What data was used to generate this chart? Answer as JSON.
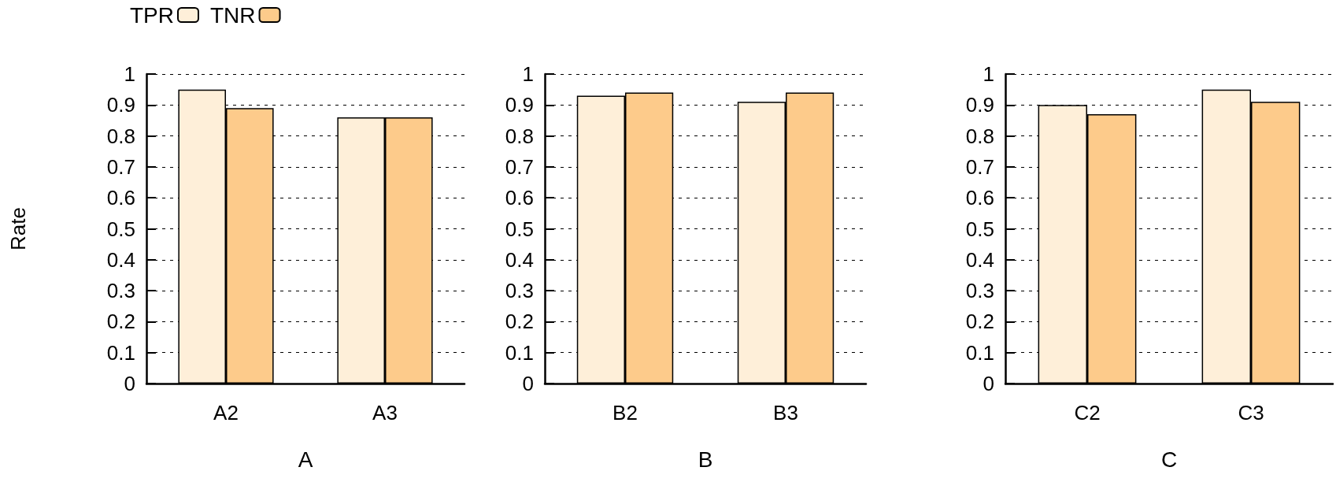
{
  "chart_data": [
    {
      "type": "bar",
      "xlabel": "A",
      "ylabel": "Rate",
      "categories": [
        "A2",
        "A3"
      ],
      "series": [
        {
          "name": "TPR",
          "color": "#feefd9",
          "values": [
            0.95,
            0.86
          ]
        },
        {
          "name": "TNR",
          "color": "#fdcb8b",
          "values": [
            0.89,
            0.86
          ]
        }
      ],
      "ylim": [
        0,
        1
      ],
      "yticks": [
        0,
        0.1,
        0.2,
        0.3,
        0.4,
        0.5,
        0.6,
        0.7,
        0.8,
        0.9,
        1
      ],
      "grid": "y",
      "legend": "top left"
    },
    {
      "type": "bar",
      "xlabel": "B",
      "categories": [
        "B2",
        "B3"
      ],
      "series": [
        {
          "color": "#feefd9",
          "values": [
            0.93,
            0.91
          ]
        },
        {
          "color": "#fdcb8b",
          "values": [
            0.94,
            0.94
          ]
        }
      ],
      "ylim": [
        0,
        1
      ],
      "yticks": [
        0,
        0.1,
        0.2,
        0.3,
        0.4,
        0.5,
        0.6,
        0.7,
        0.8,
        0.9,
        1
      ],
      "grid": "y"
    },
    {
      "type": "bar",
      "xlabel": "C",
      "categories": [
        "C2",
        "C3"
      ],
      "series": [
        {
          "color": "#feefd9",
          "values": [
            0.9,
            0.95
          ]
        },
        {
          "color": "#fdcb8b",
          "values": [
            0.87,
            0.91
          ]
        }
      ],
      "ylim": [
        0,
        1
      ],
      "yticks": [
        0,
        0.1,
        0.2,
        0.3,
        0.4,
        0.5,
        0.6,
        0.7,
        0.8,
        0.9,
        1
      ],
      "grid": "y"
    }
  ]
}
